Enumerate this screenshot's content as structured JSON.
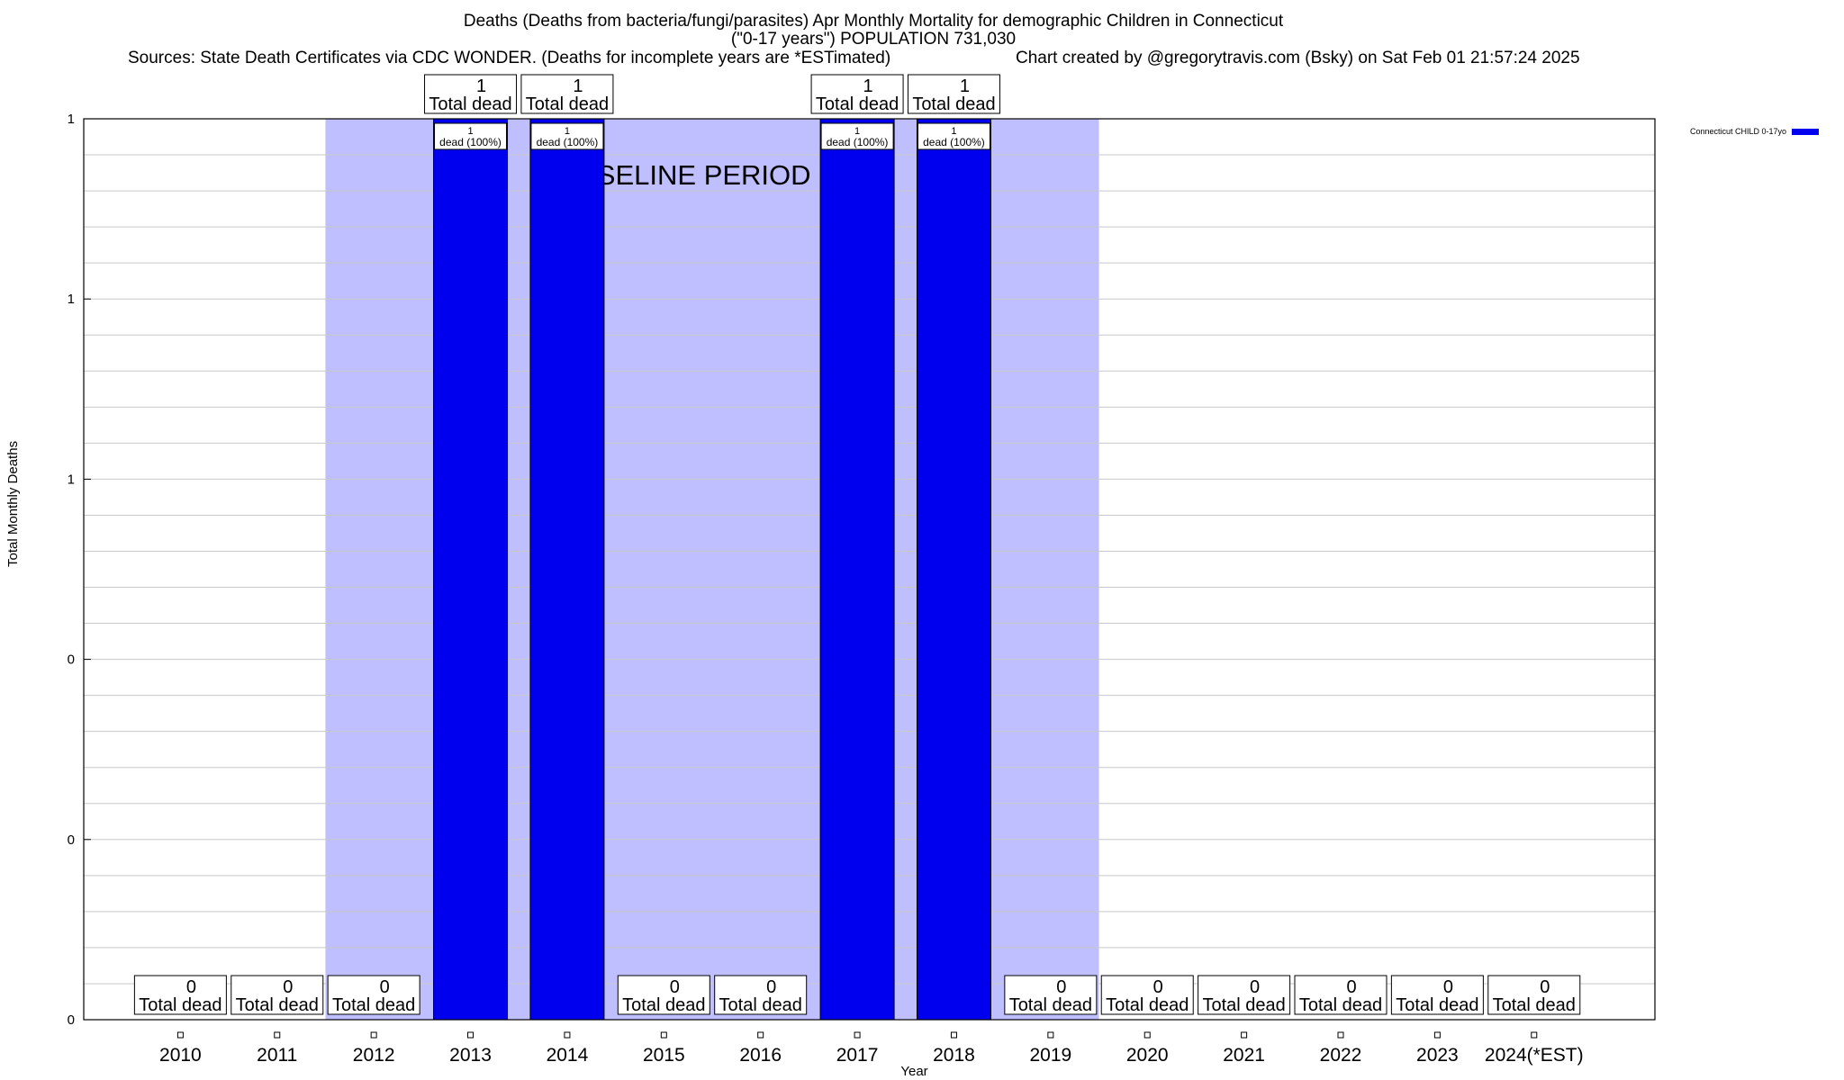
{
  "chart_data": {
    "type": "bar",
    "title_lines": [
      "Deaths (Deaths from bacteria/fungi/parasites) Apr Monthly Mortality for demographic Children in Connecticut",
      "(\"0-17 years\") POPULATION 731,030"
    ],
    "sources": "Sources: State Death Certificates via CDC WONDER. (Deaths for incomplete years are *ESTimated)",
    "credit": "Chart created by @gregorytravis.com (Bsky) on Sat Feb 01 21:57:24 2025",
    "xlabel": "Year",
    "ylabel": "Total Monthly Deaths",
    "categories": [
      "2010",
      "2011",
      "2012",
      "2013",
      "2014",
      "2015",
      "2016",
      "2017",
      "2018",
      "2019",
      "2020",
      "2021",
      "2022",
      "2023",
      "2024(*EST)"
    ],
    "series": [
      {
        "name": "Connecticut CHILD 0-17yo",
        "color": "#0000ee",
        "values": [
          0,
          0,
          0,
          1,
          1,
          0,
          0,
          1,
          1,
          0,
          0,
          0,
          0,
          0,
          0
        ]
      }
    ],
    "total_labels": [
      "0",
      "0",
      "0",
      "1",
      "1",
      "0",
      "0",
      "1",
      "1",
      "0",
      "0",
      "0",
      "0",
      "0",
      "0"
    ],
    "total_suffix": "Total dead",
    "bar_labels": {
      "top": "1",
      "bottom": "dead (100%)"
    },
    "yticks": [
      {
        "value": 0,
        "label": "0"
      },
      {
        "value": 0.2,
        "label": "0"
      },
      {
        "value": 0.4,
        "label": "0"
      },
      {
        "value": 0.6,
        "label": "1"
      },
      {
        "value": 0.8,
        "label": "1"
      },
      {
        "value": 1,
        "label": "1"
      }
    ],
    "ylim": [
      0,
      1
    ],
    "baseline": {
      "label": "BASELINE PERIOD",
      "start": "2012",
      "end": "2019",
      "color": "#bfbfff"
    },
    "grid": true,
    "legend_position": "top-right"
  }
}
